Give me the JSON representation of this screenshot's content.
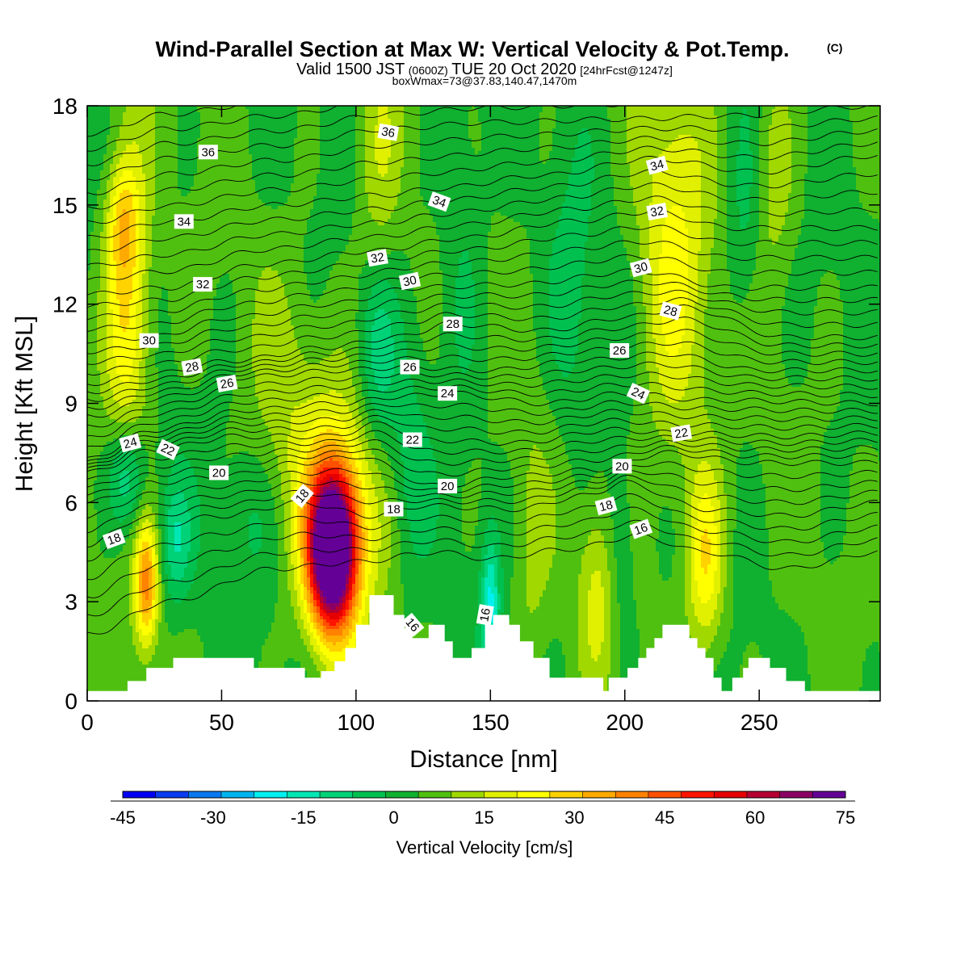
{
  "title": {
    "line1": "Wind-Parallel Section at Max W: Vertical Velocity & Pot.Temp.",
    "line1_mark": "(C)",
    "line2_a": "Valid 1500 JST",
    "line2_b": "(0600Z)",
    "line2_c": "TUE 20 Oct 2020",
    "line2_d": "[24hrFcst@1247z]",
    "line3": "boxWmax=73@37.83,140.47,1470m"
  },
  "chart_data": {
    "type": "heatmap",
    "xlabel": "Distance [nm]",
    "ylabel": "Height [Kft MSL]",
    "xlim": [
      0,
      295
    ],
    "ylim": [
      0,
      18
    ],
    "x_ticks": [
      0,
      50,
      100,
      150,
      200,
      250
    ],
    "y_ticks": [
      0,
      3,
      6,
      9,
      12,
      15,
      18
    ],
    "colorbar": {
      "title": "Vertical Velocity [cm/s]",
      "min": -45,
      "max": 75,
      "step": 5,
      "tick_labels": [
        "-45",
        "-30",
        "-15",
        "0",
        "15",
        "30",
        "45",
        "60",
        "75"
      ],
      "colors": [
        "#0000f5",
        "#0a3cf0",
        "#0a78f0",
        "#00b4f0",
        "#00f0f0",
        "#00e6b4",
        "#00d278",
        "#00c050",
        "#10b030",
        "#50c010",
        "#a0d800",
        "#e0f000",
        "#ffff00",
        "#ffd200",
        "#ffaa00",
        "#ff8200",
        "#ff5000",
        "#ff1400",
        "#e60000",
        "#b40032",
        "#8c0064",
        "#640096"
      ]
    },
    "field_blobs": [
      {
        "x": 91,
        "y": 4.5,
        "sx": 6,
        "sy": 1.6,
        "w": 75
      },
      {
        "x": 94,
        "y": 5.6,
        "sx": 10,
        "sy": 2.5,
        "w": 22
      },
      {
        "x": 22,
        "y": 3.5,
        "sx": 3,
        "sy": 1.3,
        "w": 30
      },
      {
        "x": 15,
        "y": 12,
        "sx": 6,
        "sy": 3.5,
        "w": 22
      },
      {
        "x": 13,
        "y": 14.5,
        "sx": 4,
        "sy": 1.2,
        "w": 12
      },
      {
        "x": 230,
        "y": 4.2,
        "sx": 5,
        "sy": 2.0,
        "w": 20
      },
      {
        "x": 218,
        "y": 13,
        "sx": 9,
        "sy": 4.5,
        "w": 16
      },
      {
        "x": 255,
        "y": 16,
        "sx": 6,
        "sy": 2.5,
        "w": 9
      },
      {
        "x": 108,
        "y": 16,
        "sx": 6,
        "sy": 3,
        "w": 9
      },
      {
        "x": 190,
        "y": 3.3,
        "sx": 5,
        "sy": 2,
        "w": 11
      },
      {
        "x": 165,
        "y": 4,
        "sx": 5,
        "sy": 3,
        "w": 6
      },
      {
        "x": 75,
        "y": 9,
        "sx": 10,
        "sy": 3,
        "w": 6
      },
      {
        "x": 150,
        "y": 2.8,
        "sx": 2.5,
        "sy": 1.5,
        "w": -20
      },
      {
        "x": 15,
        "y": 6.8,
        "sx": 5,
        "sy": 1.2,
        "w": -18
      },
      {
        "x": 33,
        "y": 4.8,
        "sx": 4,
        "sy": 1.3,
        "w": -13
      },
      {
        "x": 108,
        "y": 10.5,
        "sx": 5,
        "sy": 2,
        "w": -12
      },
      {
        "x": 245,
        "y": 14.5,
        "sx": 5,
        "sy": 2.5,
        "w": -8
      },
      {
        "x": 198,
        "y": 4.5,
        "sx": 4,
        "sy": 2,
        "w": -7
      },
      {
        "x": 120,
        "y": 7,
        "sx": 5,
        "sy": 2.5,
        "w": -6
      },
      {
        "x": 180,
        "y": 12,
        "sx": 6,
        "sy": 3,
        "w": -7
      },
      {
        "x": 140,
        "y": 14,
        "sx": 6,
        "sy": 4,
        "w": -6
      },
      {
        "x": 60,
        "y": 5.5,
        "sx": 8,
        "sy": 1.5,
        "w": -5
      }
    ],
    "terrain": [
      [
        0,
        0.3
      ],
      [
        15,
        0.3
      ],
      [
        15,
        0.6
      ],
      [
        22,
        0.6
      ],
      [
        22,
        1.0
      ],
      [
        32,
        1.0
      ],
      [
        32,
        1.3
      ],
      [
        62,
        1.3
      ],
      [
        62,
        1.0
      ],
      [
        81,
        1.0
      ],
      [
        81,
        0.7
      ],
      [
        87,
        0.7
      ],
      [
        87,
        0.9
      ],
      [
        92,
        0.9
      ],
      [
        92,
        1.2
      ],
      [
        96,
        1.2
      ],
      [
        96,
        1.6
      ],
      [
        100,
        1.6
      ],
      [
        100,
        2.3
      ],
      [
        105,
        2.3
      ],
      [
        105,
        3.2
      ],
      [
        114,
        3.2
      ],
      [
        114,
        2.6
      ],
      [
        118,
        2.6
      ],
      [
        118,
        2.2
      ],
      [
        121,
        2.2
      ],
      [
        121,
        1.9
      ],
      [
        127,
        1.9
      ],
      [
        127,
        2.3
      ],
      [
        133,
        2.3
      ],
      [
        133,
        1.8
      ],
      [
        136,
        1.8
      ],
      [
        136,
        1.3
      ],
      [
        143,
        1.3
      ],
      [
        143,
        1.6
      ],
      [
        148,
        1.6
      ],
      [
        148,
        2.3
      ],
      [
        151,
        2.3
      ],
      [
        151,
        2.6
      ],
      [
        157,
        2.6
      ],
      [
        157,
        2.3
      ],
      [
        161,
        2.3
      ],
      [
        161,
        1.8
      ],
      [
        166,
        1.8
      ],
      [
        166,
        1.3
      ],
      [
        172,
        1.3
      ],
      [
        172,
        0.7
      ],
      [
        192,
        0.7
      ],
      [
        192,
        0.3
      ],
      [
        194,
        0.3
      ],
      [
        194,
        0.7
      ],
      [
        201,
        0.7
      ],
      [
        201,
        1.0
      ],
      [
        205,
        1.0
      ],
      [
        205,
        1.3
      ],
      [
        208,
        1.3
      ],
      [
        208,
        1.6
      ],
      [
        211,
        1.6
      ],
      [
        211,
        1.9
      ],
      [
        214,
        1.9
      ],
      [
        214,
        2.3
      ],
      [
        224,
        2.3
      ],
      [
        224,
        1.9
      ],
      [
        227,
        1.9
      ],
      [
        227,
        1.6
      ],
      [
        230,
        1.6
      ],
      [
        230,
        1.3
      ],
      [
        233,
        1.3
      ],
      [
        233,
        0.7
      ],
      [
        236,
        0.7
      ],
      [
        236,
        0.3
      ],
      [
        240,
        0.3
      ],
      [
        240,
        0.7
      ],
      [
        244,
        0.7
      ],
      [
        244,
        1.0
      ],
      [
        246,
        1.0
      ],
      [
        246,
        1.3
      ],
      [
        254,
        1.3
      ],
      [
        254,
        1.0
      ],
      [
        260,
        1.0
      ],
      [
        260,
        0.6
      ],
      [
        267,
        0.6
      ],
      [
        267,
        0.3
      ],
      [
        295,
        0.3
      ]
    ],
    "isentrope_base": [
      {
        "theta": 16,
        "anchor": [
          [
            0,
            2.0
          ],
          [
            30,
            3.0
          ],
          [
            70,
            4.0
          ],
          [
            100,
            4.2
          ],
          [
            130,
            4.5
          ],
          [
            150,
            4.3
          ],
          [
            180,
            4.6
          ],
          [
            205,
            5.0
          ],
          [
            230,
            4.5
          ],
          [
            260,
            4.0
          ],
          [
            295,
            4.5
          ]
        ]
      },
      {
        "theta": 18,
        "anchor": [
          [
            0,
            4.3
          ],
          [
            20,
            5.2
          ],
          [
            50,
            5.6
          ],
          [
            80,
            6.0
          ],
          [
            105,
            5.6
          ],
          [
            125,
            5.9
          ],
          [
            160,
            5.8
          ],
          [
            185,
            6.2
          ],
          [
            200,
            6.6
          ],
          [
            230,
            5.8
          ],
          [
            260,
            5.6
          ],
          [
            295,
            6.0
          ]
        ]
      },
      {
        "theta": 20,
        "anchor": [
          [
            0,
            6.0
          ],
          [
            25,
            6.6
          ],
          [
            50,
            6.8
          ],
          [
            80,
            7.2
          ],
          [
            100,
            7.4
          ],
          [
            130,
            6.5
          ],
          [
            160,
            6.8
          ],
          [
            190,
            7.0
          ],
          [
            215,
            7.5
          ],
          [
            250,
            7.2
          ],
          [
            295,
            7.2
          ]
        ]
      },
      {
        "theta": 22,
        "anchor": [
          [
            0,
            6.9
          ],
          [
            25,
            7.6
          ],
          [
            55,
            8.0
          ],
          [
            90,
            8.0
          ],
          [
            110,
            8.4
          ],
          [
            125,
            7.9
          ],
          [
            160,
            7.8
          ],
          [
            195,
            8.2
          ],
          [
            220,
            8.1
          ],
          [
            260,
            8.0
          ],
          [
            295,
            8.1
          ]
        ]
      },
      {
        "theta": 24,
        "anchor": [
          [
            0,
            7.3
          ],
          [
            25,
            8.2
          ],
          [
            60,
            8.8
          ],
          [
            95,
            9.0
          ],
          [
            115,
            9.2
          ],
          [
            135,
            9.3
          ],
          [
            170,
            9.0
          ],
          [
            200,
            9.3
          ],
          [
            230,
            9.1
          ],
          [
            295,
            9.0
          ]
        ]
      },
      {
        "theta": 26,
        "anchor": [
          [
            0,
            8.6
          ],
          [
            30,
            9.2
          ],
          [
            60,
            9.8
          ],
          [
            95,
            10.0
          ],
          [
            118,
            10.1
          ],
          [
            150,
            10.0
          ],
          [
            185,
            10.3
          ],
          [
            215,
            10.5
          ],
          [
            250,
            10.0
          ],
          [
            295,
            10.0
          ]
        ]
      },
      {
        "theta": 28,
        "anchor": [
          [
            0,
            9.6
          ],
          [
            25,
            9.9
          ],
          [
            55,
            10.3
          ],
          [
            90,
            10.7
          ],
          [
            115,
            11.0
          ],
          [
            135,
            11.4
          ],
          [
            170,
            11.2
          ],
          [
            200,
            11.6
          ],
          [
            222,
            11.9
          ],
          [
            260,
            11.0
          ],
          [
            295,
            11.0
          ]
        ]
      },
      {
        "theta": 30,
        "anchor": [
          [
            0,
            10.9
          ],
          [
            23,
            11.0
          ],
          [
            55,
            11.6
          ],
          [
            90,
            12.0
          ],
          [
            122,
            12.5
          ],
          [
            160,
            12.6
          ],
          [
            205,
            13.0
          ],
          [
            240,
            12.5
          ],
          [
            295,
            12.5
          ]
        ]
      },
      {
        "theta": 32,
        "anchor": [
          [
            0,
            12.3
          ],
          [
            30,
            12.5
          ],
          [
            65,
            13.2
          ],
          [
            105,
            13.6
          ],
          [
            140,
            14.0
          ],
          [
            180,
            14.5
          ],
          [
            210,
            14.8
          ],
          [
            240,
            14.3
          ],
          [
            295,
            14.3
          ]
        ]
      },
      {
        "theta": 34,
        "anchor": [
          [
            0,
            14.0
          ],
          [
            30,
            14.5
          ],
          [
            70,
            15.0
          ],
          [
            110,
            15.3
          ],
          [
            130,
            15.5
          ],
          [
            170,
            15.9
          ],
          [
            210,
            16.4
          ],
          [
            250,
            16.0
          ],
          [
            295,
            16.5
          ]
        ]
      },
      {
        "theta": 36,
        "anchor": [
          [
            0,
            15.8
          ],
          [
            30,
            16.4
          ],
          [
            70,
            16.8
          ],
          [
            112,
            17.3
          ],
          [
            150,
            17.5
          ],
          [
            200,
            17.6
          ],
          [
            240,
            17.7
          ],
          [
            295,
            18.0
          ]
        ]
      }
    ],
    "contour_labels": [
      {
        "x": 45,
        "y": 16.6,
        "text": "36",
        "rot": 0
      },
      {
        "x": 112,
        "y": 17.2,
        "text": "36",
        "rot": 10
      },
      {
        "x": 36,
        "y": 14.5,
        "text": "34",
        "rot": 0
      },
      {
        "x": 131,
        "y": 15.1,
        "text": "34",
        "rot": 20
      },
      {
        "x": 212,
        "y": 16.2,
        "text": "34",
        "rot": -15
      },
      {
        "x": 43,
        "y": 12.6,
        "text": "32",
        "rot": 0
      },
      {
        "x": 108,
        "y": 13.4,
        "text": "32",
        "rot": -10
      },
      {
        "x": 212,
        "y": 14.8,
        "text": "32",
        "rot": -10
      },
      {
        "x": 23,
        "y": 10.9,
        "text": "30",
        "rot": 0
      },
      {
        "x": 120,
        "y": 12.7,
        "text": "30",
        "rot": -12
      },
      {
        "x": 206,
        "y": 13.1,
        "text": "30",
        "rot": -15
      },
      {
        "x": 39,
        "y": 10.1,
        "text": "28",
        "rot": -10
      },
      {
        "x": 136,
        "y": 11.4,
        "text": "28",
        "rot": 0
      },
      {
        "x": 217,
        "y": 11.8,
        "text": "28",
        "rot": 15
      },
      {
        "x": 52,
        "y": 9.6,
        "text": "26",
        "rot": -10
      },
      {
        "x": 120,
        "y": 10.1,
        "text": "26",
        "rot": 0
      },
      {
        "x": 198,
        "y": 10.6,
        "text": "26",
        "rot": 0
      },
      {
        "x": 16,
        "y": 7.8,
        "text": "24",
        "rot": -15
      },
      {
        "x": 134,
        "y": 9.3,
        "text": "24",
        "rot": 0
      },
      {
        "x": 205,
        "y": 9.3,
        "text": "24",
        "rot": 25
      },
      {
        "x": 30,
        "y": 7.6,
        "text": "22",
        "rot": 25
      },
      {
        "x": 121,
        "y": 7.9,
        "text": "22",
        "rot": 0
      },
      {
        "x": 221,
        "y": 8.1,
        "text": "22",
        "rot": -10
      },
      {
        "x": 49,
        "y": 6.9,
        "text": "20",
        "rot": 0
      },
      {
        "x": 134,
        "y": 6.5,
        "text": "20",
        "rot": 0
      },
      {
        "x": 199,
        "y": 7.1,
        "text": "20",
        "rot": 0
      },
      {
        "x": 80,
        "y": 6.2,
        "text": "18",
        "rot": -50
      },
      {
        "x": 114,
        "y": 5.8,
        "text": "18",
        "rot": 0
      },
      {
        "x": 10,
        "y": 4.9,
        "text": "18",
        "rot": -20
      },
      {
        "x": 193,
        "y": 5.9,
        "text": "18",
        "rot": -15
      },
      {
        "x": 206,
        "y": 5.2,
        "text": "16",
        "rot": -20
      },
      {
        "x": 121,
        "y": 2.3,
        "text": "16",
        "rot": 50
      },
      {
        "x": 148,
        "y": 2.6,
        "text": "16",
        "rot": -80
      }
    ]
  }
}
